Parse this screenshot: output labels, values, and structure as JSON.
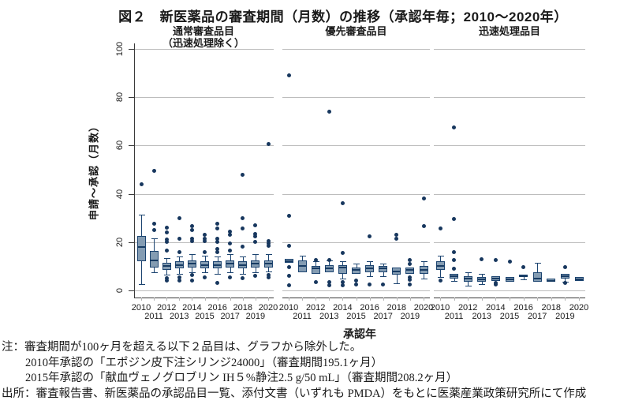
{
  "page_title": "図２　新医薬品の審査期間（月数）の推移（承認年毎；2010～2020年）",
  "y_axis": {
    "title": "申請～承認（月数）",
    "ticks": [
      "0",
      "20",
      "40",
      "60",
      "80",
      "100"
    ]
  },
  "x_axis": {
    "title": "承認年",
    "row1": [
      "2010",
      "2012",
      "2014",
      "2016",
      "2018",
      "2020"
    ],
    "row2": [
      "2011",
      "2013",
      "2015",
      "2017",
      "2019"
    ]
  },
  "notes": {
    "line1": "注：審査期間が100ヶ月を超える以下２品目は、グラフから除外した。",
    "line2": "2010年承認の「エポジン皮下注シリンジ24000」（審査期間195.1ヶ月）",
    "line3": "2015年承認の「献血ヴェノグロブリン IH５%静注2.5 g/50 mL」（審査期間208.2ヶ月）",
    "source": "出所：審査報告書、新医薬品の承認品目一覧、添付文書（いずれも PMDA）をもとに医薬産業政策研究所にて作成"
  },
  "colors": {
    "box_fill": "#849cb2",
    "box_border": "#1c4470",
    "outlier_dot": "#17375e",
    "gridline": "#bdbdbd",
    "axis": "#3a3a3a"
  },
  "chart_data": {
    "type": "boxplot",
    "title": "図２　新医薬品の審査期間（月数）の推移（承認年毎；2010～2020年）",
    "ylabel": "申請～承認（月数）",
    "xlabel": "承認年",
    "ylim": [
      0,
      100
    ],
    "grid": true,
    "gridlines": [
      0,
      20,
      40,
      60,
      80,
      100
    ],
    "categories": [
      "2010",
      "2011",
      "2012",
      "2013",
      "2014",
      "2015",
      "2016",
      "2017",
      "2018",
      "2019",
      "2020"
    ],
    "panels": [
      {
        "label": "通常審査品目",
        "sublabel": "（迅速処理除く）",
        "boxes": [
          {
            "year": "2010",
            "q1": 12,
            "median": 18,
            "q3": 22.5,
            "whisker_low": 2.5,
            "whisker_high": 31.5,
            "outliers": [
              44
            ]
          },
          {
            "year": "2011",
            "q1": 9.5,
            "median": 12.5,
            "q3": 16.5,
            "whisker_low": 7.5,
            "whisker_high": 21.5,
            "outliers": [
              49.5,
              27.5,
              25
            ]
          },
          {
            "year": "2012",
            "q1": 8.5,
            "median": 10,
            "q3": 11.5,
            "whisker_low": 6.5,
            "whisker_high": 13.5,
            "outliers": [
              26,
              24,
              21,
              20,
              16.5,
              5,
              4
            ]
          },
          {
            "year": "2013",
            "q1": 9,
            "median": 10.5,
            "q3": 12,
            "whisker_low": 7,
            "whisker_high": 14,
            "outliers": [
              30,
              21.5,
              16,
              5.5,
              4
            ]
          },
          {
            "year": "2014",
            "q1": 9.5,
            "median": 11,
            "q3": 12.5,
            "whisker_low": 7.5,
            "whisker_high": 15,
            "outliers": [
              26.5,
              25,
              21.5,
              20.5,
              6.5,
              4
            ]
          },
          {
            "year": "2015",
            "q1": 9,
            "median": 10.5,
            "q3": 12,
            "whisker_low": 7.5,
            "whisker_high": 14.5,
            "outliers": [
              23,
              21.5,
              20.5,
              16,
              5.5
            ]
          },
          {
            "year": "2016",
            "q1": 9,
            "median": 10.5,
            "q3": 12,
            "whisker_low": 7,
            "whisker_high": 14,
            "outliers": [
              27.5,
              25.5,
              21.5,
              20,
              17,
              16,
              3
            ]
          },
          {
            "year": "2017",
            "q1": 9.5,
            "median": 11,
            "q3": 12.5,
            "whisker_low": 7.5,
            "whisker_high": 15,
            "outliers": [
              24.5,
              23,
              19.5,
              16.5,
              5.5
            ]
          },
          {
            "year": "2018",
            "q1": 9,
            "median": 10.5,
            "q3": 12,
            "whisker_low": 7,
            "whisker_high": 14,
            "outliers": [
              48,
              30,
              25.5,
              18,
              5
            ]
          },
          {
            "year": "2019",
            "q1": 9.5,
            "median": 11,
            "q3": 12.5,
            "whisker_low": 7.5,
            "whisker_high": 15,
            "outliers": [
              27,
              23.5,
              22.5,
              20,
              6
            ]
          },
          {
            "year": "2020",
            "q1": 9.5,
            "median": 11,
            "q3": 12.5,
            "whisker_low": 8,
            "whisker_high": 15,
            "outliers": [
              60.5,
              20.5,
              19.5,
              18.5,
              6.5,
              5.5
            ]
          }
        ]
      },
      {
        "label": "優先審査品目",
        "sublabel": "",
        "boxes": [
          {
            "year": "2010",
            "q1": 11.5,
            "median": 12,
            "q3": 13,
            "whisker_low": 11.5,
            "whisker_high": 13,
            "outliers": [
              89,
              31,
              18.5,
              9.5,
              6,
              2
            ]
          },
          {
            "year": "2011",
            "q1": 7.5,
            "median": 10,
            "q3": 12.5,
            "whisker_low": 7.5,
            "whisker_high": 14.5,
            "outliers": []
          },
          {
            "year": "2012",
            "q1": 7,
            "median": 9,
            "q3": 10,
            "whisker_low": 7,
            "whisker_high": 12,
            "outliers": [
              12.5,
              3.5
            ]
          },
          {
            "year": "2013",
            "q1": 7.5,
            "median": 9,
            "q3": 10.5,
            "whisker_low": 7.5,
            "whisker_high": 12.5,
            "outliers": [
              74,
              12.5,
              3.5,
              2
            ]
          },
          {
            "year": "2014",
            "q1": 7,
            "median": 9.5,
            "q3": 10.5,
            "whisker_low": 5,
            "whisker_high": 12,
            "outliers": [
              36,
              15.5,
              3.5,
              2
            ]
          },
          {
            "year": "2015",
            "q1": 7,
            "median": 8.5,
            "q3": 9.5,
            "whisker_low": 7,
            "whisker_high": 11,
            "outliers": [
              4,
              2.5
            ]
          },
          {
            "year": "2016",
            "q1": 7.5,
            "median": 9,
            "q3": 10.5,
            "whisker_low": 6,
            "whisker_high": 12,
            "outliers": [
              22.5,
              2.5
            ]
          },
          {
            "year": "2017",
            "q1": 7.5,
            "median": 9,
            "q3": 10,
            "whisker_low": 6,
            "whisker_high": 11,
            "outliers": [
              2.5
            ]
          },
          {
            "year": "2018",
            "q1": 6.5,
            "median": 8,
            "q3": 9.5,
            "whisker_low": 3,
            "whisker_high": 9.5,
            "outliers": [
              23,
              21.5
            ]
          },
          {
            "year": "2019",
            "q1": 7,
            "median": 8.5,
            "q3": 9.5,
            "whisker_low": 7,
            "whisker_high": 9.5,
            "outliers": [
              12.5,
              11,
              5.5,
              4.5,
              2.5
            ]
          },
          {
            "year": "2020",
            "q1": 7,
            "median": 8.5,
            "q3": 10,
            "whisker_low": 5,
            "whisker_high": 12,
            "outliers": [
              38,
              26.5
            ]
          }
        ]
      },
      {
        "label": "迅速処理品目",
        "sublabel": "",
        "boxes": [
          {
            "year": "2010",
            "q1": 8.5,
            "median": 10,
            "q3": 12,
            "whisker_low": 5.5,
            "whisker_high": 14.5,
            "outliers": [
              25.5,
              4
            ]
          },
          {
            "year": "2011",
            "q1": 5,
            "median": 6,
            "q3": 7,
            "whisker_low": 4,
            "whisker_high": 7,
            "outliers": [
              67.5,
              29.5,
              16,
              12.5,
              9
            ]
          },
          {
            "year": "2012",
            "q1": 3.5,
            "median": 5,
            "q3": 6,
            "whisker_low": 2,
            "whisker_high": 7.5,
            "outliers": []
          },
          {
            "year": "2013",
            "q1": 3.5,
            "median": 4.5,
            "q3": 5.5,
            "whisker_low": 2.5,
            "whisker_high": 7,
            "outliers": [
              13
            ]
          },
          {
            "year": "2014",
            "q1": 4,
            "median": 5,
            "q3": 6,
            "whisker_low": 4,
            "whisker_high": 6,
            "outliers": [
              12.5,
              3,
              2.5
            ]
          },
          {
            "year": "2015",
            "q1": 3.5,
            "median": 4.5,
            "q3": 5.5,
            "whisker_low": 3.5,
            "whisker_high": 5.5,
            "outliers": [
              12
            ]
          },
          {
            "year": "2016",
            "q1": 5.5,
            "median": 6,
            "q3": 6.5,
            "whisker_low": 4.5,
            "whisker_high": 6.5,
            "outliers": [
              9.5
            ]
          },
          {
            "year": "2017",
            "q1": 3.5,
            "median": 5,
            "q3": 7.5,
            "whisker_low": 3.5,
            "whisker_high": 11.5,
            "outliers": []
          },
          {
            "year": "2018",
            "q1": 3.5,
            "median": 4,
            "q3": 5,
            "whisker_low": 3.5,
            "whisker_high": 5,
            "outliers": []
          },
          {
            "year": "2019",
            "q1": 5,
            "median": 6,
            "q3": 7,
            "whisker_low": 3.5,
            "whisker_high": 7,
            "outliers": [
              9.5,
              3
            ]
          },
          {
            "year": "2020",
            "q1": 4,
            "median": 4.5,
            "q3": 5.5,
            "whisker_low": 4,
            "whisker_high": 5.5,
            "outliers": []
          }
        ]
      }
    ]
  }
}
